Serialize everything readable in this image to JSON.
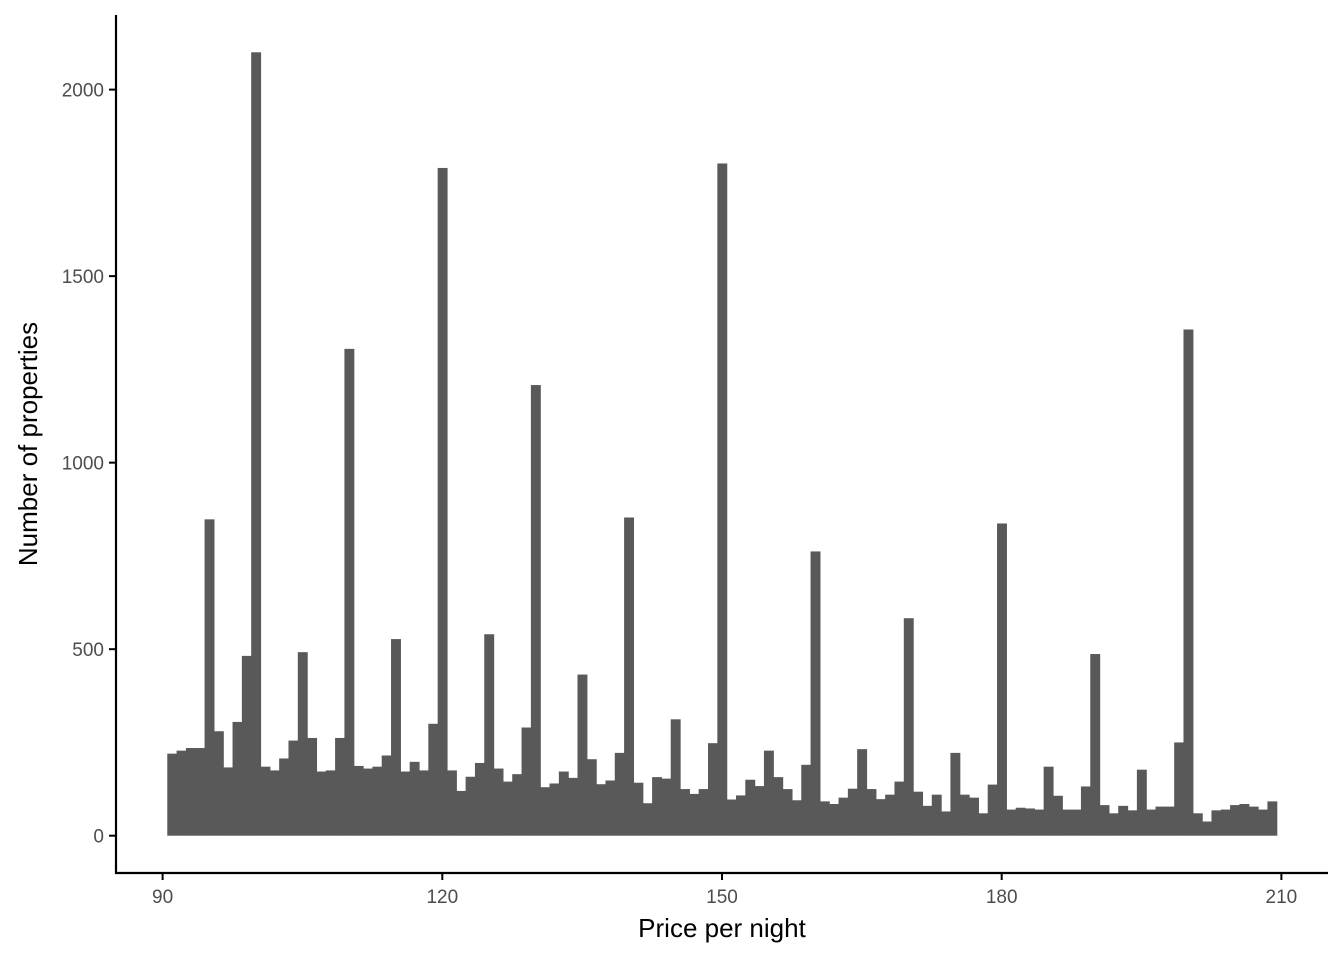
{
  "colors": {
    "bar": "#595959",
    "axis": "#000000",
    "tick_label": "#4d4d4d",
    "background": "#ffffff"
  },
  "chart_data": {
    "type": "bar",
    "title": "",
    "xlabel": "Price per night",
    "ylabel": "Number of properties",
    "grid": false,
    "xlim": [
      85,
      215
    ],
    "ylim": [
      -100,
      2200
    ],
    "x_ticks": [
      90,
      120,
      150,
      180,
      210
    ],
    "y_ticks": [
      0,
      500,
      1000,
      1500,
      2000
    ],
    "x_tick_labels": [
      "90",
      "120",
      "150",
      "180",
      "210"
    ],
    "y_tick_labels": [
      "0",
      "500",
      "1000",
      "1500",
      "2000"
    ],
    "bin_width": 1,
    "x": [
      91,
      92,
      93,
      94,
      95,
      96,
      97,
      98,
      99,
      100,
      101,
      102,
      103,
      104,
      105,
      106,
      107,
      108,
      109,
      110,
      111,
      112,
      113,
      114,
      115,
      116,
      117,
      118,
      119,
      120,
      121,
      122,
      123,
      124,
      125,
      126,
      127,
      128,
      129,
      130,
      131,
      132,
      133,
      134,
      135,
      136,
      137,
      138,
      139,
      140,
      141,
      142,
      143,
      144,
      145,
      146,
      147,
      148,
      149,
      150,
      151,
      152,
      153,
      154,
      155,
      156,
      157,
      158,
      159,
      160,
      161,
      162,
      163,
      164,
      165,
      166,
      167,
      168,
      169,
      170,
      171,
      172,
      173,
      174,
      175,
      176,
      177,
      178,
      179,
      180,
      181,
      182,
      183,
      184,
      185,
      186,
      187,
      188,
      189,
      190,
      191,
      192,
      193,
      194,
      195,
      196,
      197,
      198,
      199,
      200,
      201,
      202,
      203,
      204,
      205,
      206,
      207,
      208,
      209
    ],
    "values": [
      220,
      228,
      235,
      235,
      848,
      280,
      183,
      305,
      482,
      2100,
      185,
      175,
      207,
      255,
      492,
      262,
      172,
      175,
      262,
      1305,
      187,
      180,
      185,
      215,
      527,
      172,
      198,
      175,
      300,
      1790,
      175,
      120,
      158,
      195,
      540,
      180,
      145,
      165,
      290,
      1208,
      130,
      140,
      172,
      155,
      432,
      205,
      138,
      148,
      222,
      853,
      142,
      87,
      157,
      153,
      312,
      125,
      112,
      125,
      248,
      1802,
      97,
      108,
      150,
      133,
      228,
      157,
      125,
      95,
      190,
      762,
      92,
      85,
      102,
      126,
      232,
      125,
      98,
      110,
      145,
      583,
      118,
      80,
      110,
      65,
      222,
      110,
      102,
      60,
      137,
      837,
      70,
      75,
      73,
      70,
      185,
      107,
      70,
      70,
      132,
      487,
      82,
      60,
      80,
      68,
      177,
      70,
      78,
      78,
      250,
      1357,
      60,
      38,
      68,
      70,
      82,
      85,
      78,
      70,
      92
    ]
  }
}
